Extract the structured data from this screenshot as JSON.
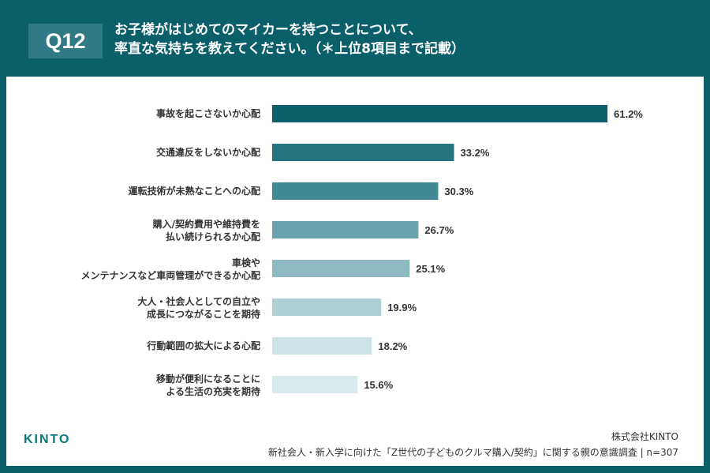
{
  "header": {
    "q_number": "Q12",
    "title_line1": "お子様がはじめてのマイカーを持つことについて、",
    "title_line2": "率直な気持ちを教えてください。（＊上位8項目まで記載）"
  },
  "chart_data": {
    "type": "bar",
    "orientation": "horizontal",
    "categories": [
      [
        "事故を起こさないか心配"
      ],
      [
        "交通違反をしないか心配"
      ],
      [
        "運転技術が未熟なことへの心配"
      ],
      [
        "購入/契約費用や維持費を",
        "払い続けられるか心配"
      ],
      [
        "車検や",
        "メンテナンスなど車両管理ができるか心配"
      ],
      [
        "大人・社会人としての自立や",
        "成長につながることを期待"
      ],
      [
        "行動範囲の拡大による心配"
      ],
      [
        "移動が便利になることに",
        "よる生活の充実を期待"
      ]
    ],
    "values": [
      61.2,
      33.2,
      30.3,
      26.7,
      25.1,
      19.9,
      18.2,
      15.6
    ],
    "value_labels": [
      "61.2%",
      "33.2%",
      "30.3%",
      "26.7%",
      "25.1%",
      "19.9%",
      "18.2%",
      "15.6%"
    ],
    "colors": [
      "#0b5f6b",
      "#257580",
      "#3f8a94",
      "#6aa3ac",
      "#8db9c1",
      "#b0cfd5",
      "#cde3e7",
      "#d8eaed"
    ],
    "unit": "%",
    "grid": false
  },
  "footer": {
    "logo": "KINTO",
    "company": "株式会社KINTO",
    "source": "新社会人・新入学に向けた「Z世代の子どものクルマ購入/契約」に関する親の意識調査 | n=307"
  }
}
